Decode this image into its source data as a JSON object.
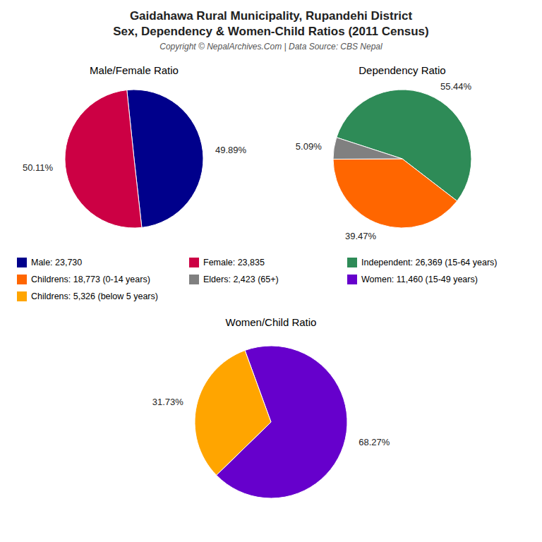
{
  "title": "Gaidahawa Rural Municipality, Rupandehi District",
  "subtitle": "Sex, Dependency & Women-Child Ratios (2011 Census)",
  "annotations": [
    "Copyright © NepalArchives.Com | Data Source: CBS Nepal"
  ],
  "chart_data": [
    {
      "type": "pie",
      "title": "Male/Female Ratio",
      "categories": [
        "Male: 23,730",
        "Female: 23,835"
      ],
      "values": [
        49.89,
        50.11
      ],
      "value_labels": [
        "49.89%",
        "50.11%"
      ],
      "colors": [
        "#00008B",
        "#CC0044"
      ],
      "data_labels": true
    },
    {
      "type": "pie",
      "title": "Dependency Ratio",
      "categories": [
        "Independent: 26,369 (15-64 years)",
        "Childrens: 18,773 (0-14 years)",
        "Elders: 2,423 (65+)"
      ],
      "values": [
        55.44,
        39.47,
        5.09
      ],
      "value_labels": [
        "55.44%",
        "39.47%",
        "5.09%"
      ],
      "colors": [
        "#2E8B57",
        "#FF6600",
        "#808080"
      ],
      "data_labels": true
    },
    {
      "type": "pie",
      "title": "Women/Child Ratio",
      "categories": [
        "Women: 11,460 (15-49 years)",
        "Childrens: 5,326 (below 5 years)"
      ],
      "values": [
        68.27,
        31.73
      ],
      "value_labels": [
        "68.27%",
        "31.73%"
      ],
      "colors": [
        "#6600CC",
        "#FFA500"
      ],
      "data_labels": true
    }
  ]
}
